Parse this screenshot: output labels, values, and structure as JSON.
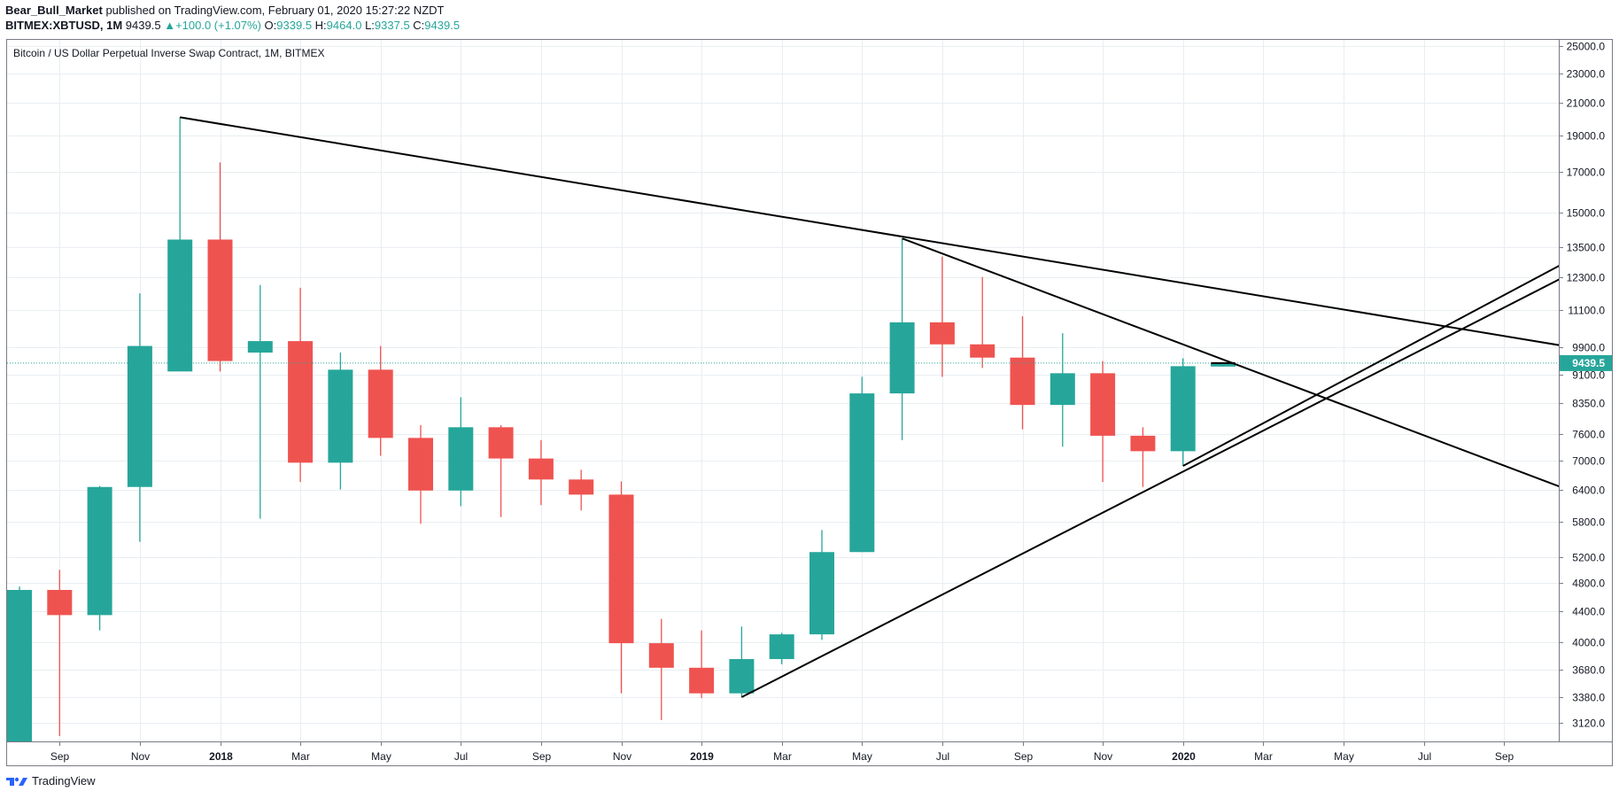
{
  "header": {
    "author": "Bear_Bull_Market",
    "published": "published on TradingView.com, February 01, 2020 15:27:22 NZDT",
    "symbol_line_prefix": "BITMEX:XBTUSD, 1M",
    "last": "9439.5",
    "change_arrow": "▲",
    "change": "+100.0 (+1.07%)",
    "o_label": "O:",
    "o": "9339.5",
    "h_label": "H:",
    "h": "9464.0",
    "l_label": "L:",
    "l": "9337.5",
    "c_label": "C:",
    "c": "9439.5"
  },
  "footer": {
    "brand": "TradingView"
  },
  "colors": {
    "up": "#26a69a",
    "down": "#ef5350",
    "grid": "#e9eef2",
    "text": "#131722",
    "trendline": "#000000"
  },
  "chart_data": {
    "type": "candlestick",
    "title": "Bitcoin / US Dollar Perpetual Inverse Swap Contract, 1M, BITMEX",
    "y_scale": "log",
    "ylim": [
      2950,
      25500
    ],
    "y_ticks": [
      "25000.0",
      "23000.0",
      "21000.0",
      "19000.0",
      "17000.0",
      "15000.0",
      "13500.0",
      "12300.0",
      "11100.0",
      "9900.0",
      "9100.0",
      "8350.0",
      "7600.0",
      "7000.0",
      "6400.0",
      "5800.0",
      "5200.0",
      "4800.0",
      "4400.0",
      "4000.0",
      "3680.0",
      "3380.0",
      "3120.0"
    ],
    "x_labels": [
      {
        "i": 1,
        "text": "Sep",
        "bold": false
      },
      {
        "i": 3,
        "text": "Nov",
        "bold": false
      },
      {
        "i": 5,
        "text": "2018",
        "bold": true
      },
      {
        "i": 7,
        "text": "Mar",
        "bold": false
      },
      {
        "i": 9,
        "text": "May",
        "bold": false
      },
      {
        "i": 11,
        "text": "Jul",
        "bold": false
      },
      {
        "i": 13,
        "text": "Sep",
        "bold": false
      },
      {
        "i": 15,
        "text": "Nov",
        "bold": false
      },
      {
        "i": 17,
        "text": "2019",
        "bold": true
      },
      {
        "i": 19,
        "text": "Mar",
        "bold": false
      },
      {
        "i": 21,
        "text": "May",
        "bold": false
      },
      {
        "i": 23,
        "text": "Jul",
        "bold": false
      },
      {
        "i": 25,
        "text": "Sep",
        "bold": false
      },
      {
        "i": 27,
        "text": "Nov",
        "bold": false
      },
      {
        "i": 29,
        "text": "2020",
        "bold": true
      },
      {
        "i": 31,
        "text": "Mar",
        "bold": false
      },
      {
        "i": 33,
        "text": "May",
        "bold": false
      },
      {
        "i": 35,
        "text": "Jul",
        "bold": false
      },
      {
        "i": 37,
        "text": "Sep",
        "bold": false
      }
    ],
    "last_price": "9439.5",
    "candles": [
      {
        "date": "2017-08",
        "o": 2900,
        "h": 4750,
        "l": 2700,
        "c": 4700
      },
      {
        "date": "2017-09",
        "o": 4700,
        "h": 5000,
        "l": 3000,
        "c": 4350
      },
      {
        "date": "2017-10",
        "o": 4350,
        "h": 6470,
        "l": 4150,
        "c": 6450
      },
      {
        "date": "2017-11",
        "o": 6450,
        "h": 11700,
        "l": 5450,
        "c": 9950
      },
      {
        "date": "2017-12",
        "o": 9200,
        "h": 20100,
        "l": 9350,
        "c": 13800
      },
      {
        "date": "2018-01",
        "o": 13800,
        "h": 17500,
        "l": 9200,
        "c": 9500
      },
      {
        "date": "2018-02",
        "o": 9750,
        "h": 12000,
        "l": 5850,
        "c": 10100
      },
      {
        "date": "2018-03",
        "o": 10100,
        "h": 11900,
        "l": 6550,
        "c": 6950
      },
      {
        "date": "2018-04",
        "o": 6950,
        "h": 9750,
        "l": 6400,
        "c": 9250
      },
      {
        "date": "2018-05",
        "o": 9250,
        "h": 9950,
        "l": 7100,
        "c": 7500
      },
      {
        "date": "2018-06",
        "o": 7500,
        "h": 7800,
        "l": 5760,
        "c": 6380
      },
      {
        "date": "2018-07",
        "o": 6380,
        "h": 8500,
        "l": 6080,
        "c": 7750
      },
      {
        "date": "2018-08",
        "o": 7750,
        "h": 7800,
        "l": 5880,
        "c": 7040
      },
      {
        "date": "2018-09",
        "o": 7040,
        "h": 7450,
        "l": 6100,
        "c": 6600
      },
      {
        "date": "2018-10",
        "o": 6600,
        "h": 6800,
        "l": 6000,
        "c": 6300
      },
      {
        "date": "2018-11",
        "o": 6300,
        "h": 6560,
        "l": 3420,
        "c": 3990
      },
      {
        "date": "2018-12",
        "o": 3990,
        "h": 4300,
        "l": 3150,
        "c": 3700
      },
      {
        "date": "2019-01",
        "o": 3700,
        "h": 4150,
        "l": 3370,
        "c": 3420
      },
      {
        "date": "2019-02",
        "o": 3420,
        "h": 4200,
        "l": 3380,
        "c": 3800
      },
      {
        "date": "2019-03",
        "o": 3800,
        "h": 4120,
        "l": 3740,
        "c": 4100
      },
      {
        "date": "2019-04",
        "o": 4100,
        "h": 5650,
        "l": 4030,
        "c": 5280
      },
      {
        "date": "2019-05",
        "o": 5280,
        "h": 9050,
        "l": 5280,
        "c": 8600
      },
      {
        "date": "2019-06",
        "o": 8600,
        "h": 13850,
        "l": 7450,
        "c": 10700
      },
      {
        "date": "2019-07",
        "o": 10700,
        "h": 13100,
        "l": 9050,
        "c": 10000
      },
      {
        "date": "2019-08",
        "o": 10000,
        "h": 12300,
        "l": 9300,
        "c": 9600
      },
      {
        "date": "2019-09",
        "o": 9600,
        "h": 10900,
        "l": 7700,
        "c": 8300
      },
      {
        "date": "2019-10",
        "o": 8300,
        "h": 10350,
        "l": 7300,
        "c": 9150
      },
      {
        "date": "2019-11",
        "o": 9150,
        "h": 9500,
        "l": 6550,
        "c": 7550
      },
      {
        "date": "2019-12",
        "o": 7550,
        "h": 7750,
        "l": 6450,
        "c": 7200
      },
      {
        "date": "2020-01",
        "o": 7200,
        "h": 9580,
        "l": 6880,
        "c": 9350
      },
      {
        "date": "2020-02",
        "o": 9339.5,
        "h": 9464,
        "l": 9337.5,
        "c": 9439.5
      }
    ],
    "trendlines": [
      {
        "from": {
          "i": 4,
          "price": 20100
        },
        "to": {
          "i": 38.75,
          "price": 9900
        }
      },
      {
        "from": {
          "i": 22,
          "price": 13850
        },
        "to": {
          "i": 38.75,
          "price": 6350
        }
      },
      {
        "from": {
          "i": 18,
          "price": 3380
        },
        "to": {
          "i": 38.75,
          "price": 12500
        }
      },
      {
        "from": {
          "i": 29,
          "price": 6880
        },
        "to": {
          "i": 38.75,
          "price": 13050
        }
      },
      {
        "from": {
          "i": 29.7,
          "price": 9439.5
        },
        "to": {
          "i": 30.3,
          "price": 9439.5
        }
      }
    ]
  }
}
